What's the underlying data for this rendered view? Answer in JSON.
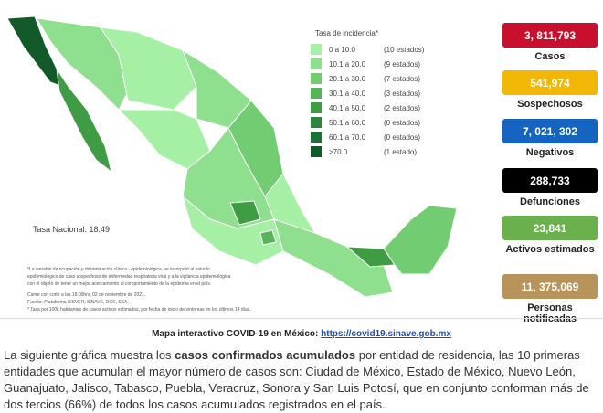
{
  "legend": {
    "title": "Tasa de incidencia*",
    "items": [
      {
        "range": "0  a  10.0",
        "count": "(10 estados)",
        "color": "#a6f0a6"
      },
      {
        "range": "10.1  a  20.0",
        "count": "(9 estados)",
        "color": "#8ee08e"
      },
      {
        "range": "20.1  a  30.0",
        "count": "(7 estados)",
        "color": "#72cc72"
      },
      {
        "range": "30.1  a  40.0",
        "count": "(3 estados)",
        "color": "#58b458"
      },
      {
        "range": "40.1  a  50.0",
        "count": "(2 estados)",
        "color": "#3f9c45"
      },
      {
        "range": "50.1  a  60.0",
        "count": "(0 estados)",
        "color": "#2e863c"
      },
      {
        "range": "60.1  a  70.0",
        "count": "(0 estados)",
        "color": "#1f7034"
      },
      {
        "range": ">70.0",
        "count": "(1 estado)",
        "color": "#125a2a"
      }
    ]
  },
  "national_rate": "Tasa Nacional: 18.49",
  "footnotes": [
    "*La variable de ocupación y dictaminación clínica - epidemiológica, se incorporó al estudio",
    "epidemiológico de caso sospechoso de enfermedad respiratoria viral y a la vigilancia epidemiológica",
    "con el objeto de tener un mejor acercamiento al comportamiento de la epidemia en el país.",
    "Cierre con corte a las 18:00hrs, 02 de noviembre de 2021.",
    "Fuente: Plataforma SISVER, SINAVE, DGE, SSA.",
    "* Tasa por 100k habitantes de casos activos estimados, por fecha de inicio de síntomas en los últimos 14 días."
  ],
  "stats": [
    {
      "value": "3, 811,793",
      "label": "Casos",
      "color": "#c8102e"
    },
    {
      "value": "541,974",
      "label": "Sospechosos",
      "color": "#f2b705"
    },
    {
      "value": "7, 021, 302",
      "label": "Negativos",
      "color": "#1565c0"
    },
    {
      "value": "288,733",
      "label": "Defunciones",
      "color": "#000000"
    },
    {
      "value": "23,841",
      "label": "Activos estimados",
      "color": "#6ab04c"
    },
    {
      "value": "11, 375,069",
      "label": "Personas notificadas",
      "color": "#b8935a"
    }
  ],
  "map_link": {
    "text": "Mapa interactivo COVID-19 en México: ",
    "url": "https://covid19.sinave.gob.mx"
  },
  "paragraph": {
    "before": "La siguiente gráfica muestra los ",
    "bold": "casos confirmados acumulados",
    "after": " por entidad de residencia, las 10 primeras entidades que acumulan el mayor número de casos son: Ciudad de México, Estado de México, Nuevo León, Guanajuato, Jalisco, Tabasco, Puebla, Veracruz, Sonora y San Luis Potosí, que en conjunto conforman más de dos tercios (66%) de todos los casos acumulados registrados en el país."
  }
}
